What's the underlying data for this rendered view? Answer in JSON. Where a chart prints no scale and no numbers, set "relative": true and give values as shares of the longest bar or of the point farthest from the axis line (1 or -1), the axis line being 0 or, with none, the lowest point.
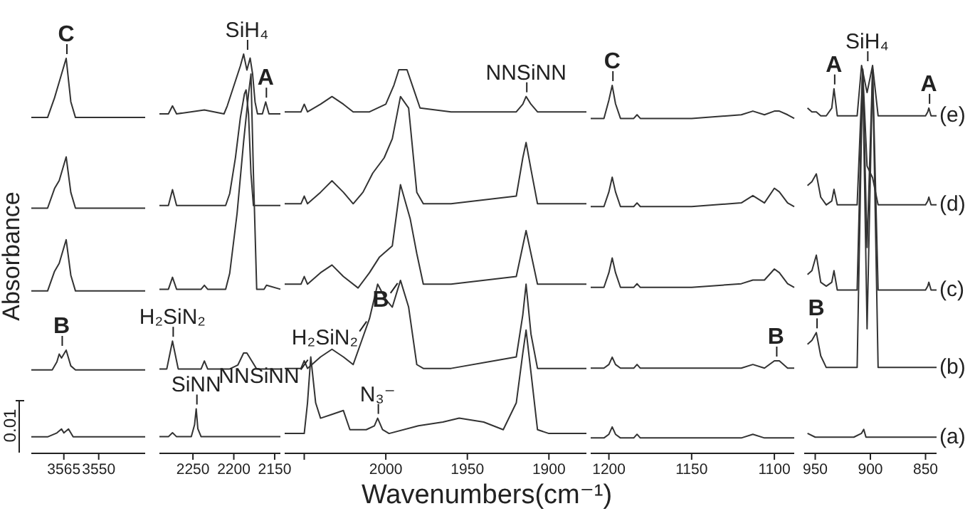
{
  "chart_data": [
    {
      "type": "line",
      "relative": true,
      "ylabel": "Absorbance",
      "xlim": [
        3579,
        3530
      ],
      "xticks": [
        3565,
        3550
      ],
      "annotations": [
        {
          "text": "C",
          "x": 3564,
          "y": 1
        },
        {
          "text": "B",
          "x": 3566,
          "y": 0.26
        },
        "0.01"
      ],
      "series": [
        {
          "color": "#333333",
          "x": [
            3579,
            3572,
            3568,
            3566,
            3565,
            3563,
            3561,
            3555,
            3545,
            3530
          ],
          "values": [
            0.04,
            0.04,
            0.05,
            0.06,
            0.05,
            0.06,
            0.04,
            0.04,
            0.04,
            0.04
          ]
        },
        {
          "color": "#333333",
          "x": [
            3579,
            3570,
            3568,
            3567,
            3566,
            3564,
            3562,
            3560,
            3530
          ],
          "values": [
            0.21,
            0.21,
            0.23,
            0.25,
            0.24,
            0.26,
            0.22,
            0.21,
            0.21
          ]
        },
        {
          "color": "#333333",
          "x": [
            3579,
            3572,
            3569,
            3567,
            3564,
            3562,
            3560,
            3530
          ],
          "values": [
            0.41,
            0.41,
            0.46,
            0.48,
            0.54,
            0.45,
            0.41,
            0.41
          ]
        },
        {
          "color": "#333333",
          "x": [
            3579,
            3572,
            3569,
            3567,
            3564,
            3562,
            3560,
            3530
          ],
          "values": [
            0.62,
            0.62,
            0.67,
            0.69,
            0.75,
            0.66,
            0.62,
            0.62
          ]
        },
        {
          "color": "#333333",
          "x": [
            3579,
            3572,
            3569,
            3567,
            3564,
            3562,
            3560,
            3530
          ],
          "values": [
            0.85,
            0.85,
            0.9,
            0.94,
            1,
            0.89,
            0.85,
            0.85
          ]
        }
      ]
    },
    {
      "type": "line",
      "relative": true,
      "xlim": [
        2291,
        2143
      ],
      "xticks": [
        2250,
        2200,
        2150
      ],
      "annotations": [
        {
          "text": "SiH₄",
          "x": 2184,
          "y": 1
        },
        {
          "text": "A",
          "x": 2161,
          "y": 0.88
        },
        {
          "text": "H₂SiN₂",
          "x": 2275,
          "y": 0.28
        },
        {
          "text": "SiNN",
          "x": 2246,
          "y": 0.11
        }
      ],
      "series": [
        {
          "color": "#333333",
          "x": [
            2291,
            2280,
            2275,
            2270,
            2252,
            2248,
            2246,
            2244,
            2240,
            2200,
            2143
          ],
          "values": [
            0.04,
            0.04,
            0.05,
            0.04,
            0.04,
            0.07,
            0.11,
            0.06,
            0.04,
            0.04,
            0.04
          ]
        },
        {
          "color": "#333333",
          "x": [
            2291,
            2282,
            2278,
            2275,
            2272,
            2268,
            2240,
            2236,
            2232,
            2205,
            2195,
            2188,
            2184,
            2178,
            2172,
            2165,
            2143
          ],
          "values": [
            0.21,
            0.21,
            0.25,
            0.28,
            0.25,
            0.21,
            0.21,
            0.23,
            0.21,
            0.21,
            0.22,
            0.25,
            0.25,
            0.23,
            0.21,
            0.21,
            0.21
          ]
        },
        {
          "color": "#333333",
          "x": [
            2291,
            2280,
            2275,
            2270,
            2240,
            2236,
            2232,
            2210,
            2205,
            2196,
            2188,
            2182,
            2179,
            2176,
            2172,
            2163,
            2160,
            2143
          ],
          "values": [
            0.41,
            0.41,
            0.44,
            0.41,
            0.41,
            0.42,
            0.41,
            0.41,
            0.45,
            0.6,
            0.78,
            0.9,
            0.95,
            0.7,
            0.41,
            0.41,
            0.42,
            0.41
          ]
        },
        {
          "color": "#333333",
          "x": [
            2291,
            2280,
            2275,
            2270,
            2210,
            2205,
            2198,
            2192,
            2187,
            2185,
            2182,
            2179,
            2176,
            2143
          ],
          "values": [
            0.62,
            0.62,
            0.66,
            0.62,
            0.62,
            0.65,
            0.74,
            0.84,
            0.9,
            0.91,
            0.85,
            0.7,
            0.62,
            0.62
          ]
        },
        {
          "color": "#333333",
          "x": [
            2291,
            2280,
            2275,
            2270,
            2236,
            2212,
            2208,
            2200,
            2192,
            2188,
            2184,
            2180,
            2177,
            2174,
            2171,
            2165,
            2161,
            2157,
            2143
          ],
          "values": [
            0.85,
            0.85,
            0.87,
            0.85,
            0.86,
            0.85,
            0.87,
            0.92,
            0.97,
            1,
            0.96,
            0.99,
            0.95,
            0.88,
            0.85,
            0.85,
            0.88,
            0.85,
            0.85
          ]
        }
      ]
    },
    {
      "type": "line",
      "relative": true,
      "xlabel": "Wavenumbers(cm⁻¹)",
      "xlim": [
        2062,
        1877
      ],
      "xticks": [
        {
          "value": 2050,
          "label": null
        },
        2000,
        1950,
        1900
      ],
      "annotations": [
        {
          "text": "NNSiNN",
          "x": 1914,
          "y": 0.93
        },
        {
          "text": "B",
          "x": 1991,
          "y": 0.45
        },
        {
          "text": "H₂SiN₂",
          "x": 2010,
          "y": 0.35
        },
        {
          "text": "NNSiNN",
          "x": 2046,
          "y": 0.25
        },
        {
          "text": "N₃⁻",
          "x": 2005,
          "y": 0.09
        }
      ],
      "series": [
        {
          "color": "#333333",
          "x": [
            2062,
            2050,
            2048,
            2046,
            2043,
            2040,
            2033,
            2026,
            2022,
            2012,
            2007,
            2005,
            2002,
            1998,
            1980,
            1965,
            1955,
            1940,
            1928,
            1920,
            1916,
            1914,
            1911,
            1907,
            1900,
            1877
          ],
          "values": [
            0.05,
            0.05,
            0.13,
            0.25,
            0.13,
            0.09,
            0.1,
            0.11,
            0.06,
            0.06,
            0.07,
            0.09,
            0.06,
            0.05,
            0.07,
            0.08,
            0.09,
            0.08,
            0.06,
            0.13,
            0.26,
            0.32,
            0.21,
            0.06,
            0.05,
            0.05
          ]
        },
        {
          "color": "#333333",
          "x": [
            2062,
            2052,
            2050,
            2048,
            2040,
            2033,
            2026,
            2020,
            2015,
            2010,
            2005,
            2000,
            1996,
            1991,
            1986,
            1981,
            1977,
            1960,
            1920,
            1916,
            1914,
            1911,
            1907,
            1877
          ],
          "values": [
            0.22,
            0.22,
            0.24,
            0.22,
            0.25,
            0.27,
            0.25,
            0.23,
            0.29,
            0.35,
            0.44,
            0.4,
            0.38,
            0.45,
            0.38,
            0.23,
            0.22,
            0.22,
            0.25,
            0.36,
            0.44,
            0.31,
            0.22,
            0.22
          ]
        },
        {
          "color": "#333333",
          "x": [
            2062,
            2052,
            2050,
            2048,
            2040,
            2033,
            2026,
            2017,
            2010,
            2004,
            1996,
            1991,
            1985,
            1981,
            1977,
            1960,
            1920,
            1916,
            1914,
            1911,
            1907,
            1877
          ],
          "values": [
            0.44,
            0.44,
            0.46,
            0.44,
            0.47,
            0.49,
            0.46,
            0.43,
            0.47,
            0.51,
            0.54,
            0.7,
            0.61,
            0.52,
            0.44,
            0.44,
            0.46,
            0.54,
            0.58,
            0.52,
            0.44,
            0.44
          ]
        },
        {
          "color": "#333333",
          "x": [
            2062,
            2052,
            2050,
            2048,
            2040,
            2033,
            2026,
            2020,
            2014,
            2008,
            2001,
            1996,
            1991,
            1986,
            1981,
            1977,
            1960,
            1920,
            1916,
            1914,
            1911,
            1907,
            1877
          ],
          "values": [
            0.65,
            0.65,
            0.67,
            0.65,
            0.68,
            0.71,
            0.68,
            0.65,
            0.68,
            0.73,
            0.77,
            0.82,
            0.93,
            0.9,
            0.68,
            0.65,
            0.65,
            0.67,
            0.77,
            0.81,
            0.74,
            0.65,
            0.65
          ]
        },
        {
          "color": "#333333",
          "x": [
            2062,
            2052,
            2050,
            2048,
            2040,
            2033,
            2026,
            2020,
            2010,
            2000,
            1995,
            1992,
            1987,
            1983,
            1979,
            1960,
            1920,
            1916,
            1914,
            1911,
            1907,
            1877
          ],
          "values": [
            0.89,
            0.89,
            0.91,
            0.89,
            0.91,
            0.93,
            0.91,
            0.89,
            0.89,
            0.91,
            0.96,
            1,
            1,
            0.95,
            0.9,
            0.89,
            0.89,
            0.91,
            0.93,
            0.91,
            0.89,
            0.89
          ]
        }
      ]
    },
    {
      "type": "line",
      "relative": true,
      "xlim": [
        1211,
        1088
      ],
      "xticks": [
        1200,
        1150,
        1100
      ],
      "annotations": [
        {
          "text": "C",
          "x": 1198,
          "y": 1
        },
        {
          "text": "B",
          "x": 1099,
          "y": 0.25
        }
      ],
      "series": [
        {
          "color": "#333333",
          "x": [
            1211,
            1203,
            1200,
            1198,
            1196,
            1193,
            1185,
            1183,
            1181,
            1150,
            1120,
            1113,
            1106,
            1100,
            1097,
            1092,
            1088
          ],
          "values": [
            0.04,
            0.04,
            0.05,
            0.07,
            0.05,
            0.04,
            0.04,
            0.05,
            0.04,
            0.04,
            0.04,
            0.05,
            0.04,
            0.04,
            0.04,
            0.04,
            0.04
          ]
        },
        {
          "color": "#333333",
          "x": [
            1211,
            1203,
            1200,
            1198,
            1196,
            1193,
            1185,
            1183,
            1181,
            1150,
            1120,
            1113,
            1106,
            1100,
            1097,
            1092,
            1088
          ],
          "values": [
            0.23,
            0.23,
            0.24,
            0.26,
            0.24,
            0.23,
            0.23,
            0.24,
            0.23,
            0.23,
            0.23,
            0.24,
            0.23,
            0.25,
            0.25,
            0.23,
            0.23
          ]
        },
        {
          "color": "#333333",
          "x": [
            1211,
            1203,
            1200,
            1198,
            1196,
            1193,
            1185,
            1183,
            1181,
            1150,
            1120,
            1113,
            1106,
            1100,
            1097,
            1092,
            1088
          ],
          "values": [
            0.45,
            0.45,
            0.49,
            0.53,
            0.49,
            0.45,
            0.45,
            0.46,
            0.45,
            0.45,
            0.46,
            0.47,
            0.47,
            0.5,
            0.49,
            0.46,
            0.45
          ]
        },
        {
          "color": "#333333",
          "x": [
            1211,
            1203,
            1200,
            1198,
            1196,
            1193,
            1185,
            1183,
            1181,
            1150,
            1120,
            1113,
            1106,
            1100,
            1097,
            1092,
            1088
          ],
          "values": [
            0.67,
            0.67,
            0.71,
            0.75,
            0.71,
            0.67,
            0.67,
            0.68,
            0.67,
            0.67,
            0.68,
            0.7,
            0.68,
            0.72,
            0.71,
            0.68,
            0.67
          ]
        },
        {
          "color": "#333333",
          "x": [
            1211,
            1203,
            1200,
            1198,
            1196,
            1193,
            1185,
            1183,
            1181,
            1150,
            1120,
            1113,
            1106,
            1100,
            1097,
            1092,
            1088
          ],
          "values": [
            0.91,
            0.91,
            0.96,
            1,
            0.95,
            0.91,
            0.91,
            0.92,
            0.91,
            0.91,
            0.92,
            0.93,
            0.92,
            0.93,
            0.93,
            0.92,
            0.91
          ]
        }
      ]
    },
    {
      "type": "line",
      "relative": true,
      "xlim": [
        960,
        840
      ],
      "xticks": [
        950,
        900,
        850
      ],
      "annotations": [
        {
          "text": "A",
          "x": 933,
          "y": 0.94
        },
        {
          "text": "SiH₄",
          "x": 903,
          "y": 1
        },
        {
          "text": "A",
          "x": 847,
          "y": 0.89
        },
        {
          "text": "B",
          "x": 949,
          "y": 0.31
        }
      ],
      "series": [
        {
          "name": "(a)",
          "color": "#333333",
          "x": [
            957,
            950,
            940,
            930,
            915,
            908,
            906,
            904,
            895,
            870,
            850,
            840
          ],
          "values": [
            0.05,
            0.04,
            0.04,
            0.04,
            0.04,
            0.05,
            0.06,
            0.04,
            0.04,
            0.04,
            0.04,
            0.04
          ]
        },
        {
          "name": "(b)",
          "color": "#333333",
          "x": [
            957,
            953,
            949,
            945,
            940,
            930,
            912,
            907,
            903,
            898,
            893,
            870,
            850,
            840
          ],
          "values": [
            0.28,
            0.29,
            0.31,
            0.25,
            0.22,
            0.22,
            0.22,
            0.99,
            0.32,
            0.99,
            0.22,
            0.22,
            0.22,
            0.22
          ]
        },
        {
          "name": "(c)",
          "color": "#333333",
          "x": [
            957,
            953,
            949,
            945,
            940,
            935,
            933,
            930,
            912,
            907,
            903,
            898,
            893,
            850,
            848,
            847,
            845,
            840
          ],
          "values": [
            0.46,
            0.47,
            0.51,
            0.44,
            0.43,
            0.44,
            0.47,
            0.42,
            0.42,
            0.99,
            0.53,
            0.99,
            0.42,
            0.42,
            0.43,
            0.44,
            0.42,
            0.42
          ]
        },
        {
          "name": "(d)",
          "color": "#333333",
          "x": [
            957,
            953,
            949,
            945,
            940,
            935,
            933,
            930,
            912,
            907,
            903,
            898,
            893,
            850,
            848,
            847,
            845,
            840
          ],
          "values": [
            0.69,
            0.7,
            0.72,
            0.66,
            0.64,
            0.65,
            0.68,
            0.64,
            0.64,
            0.99,
            0.74,
            0.71,
            0.64,
            0.64,
            0.65,
            0.66,
            0.64,
            0.64
          ]
        },
        {
          "name": "(e)",
          "color": "#333333",
          "x": [
            957,
            953,
            949,
            945,
            940,
            935,
            933,
            930,
            912,
            908,
            903,
            898,
            893,
            850,
            848,
            847,
            845,
            840
          ],
          "values": [
            0.89,
            0.88,
            0.88,
            0.87,
            0.87,
            0.89,
            0.94,
            0.87,
            0.87,
            1,
            0.93,
            1,
            0.87,
            0.87,
            0.88,
            0.89,
            0.87,
            0.87
          ]
        }
      ]
    }
  ]
}
